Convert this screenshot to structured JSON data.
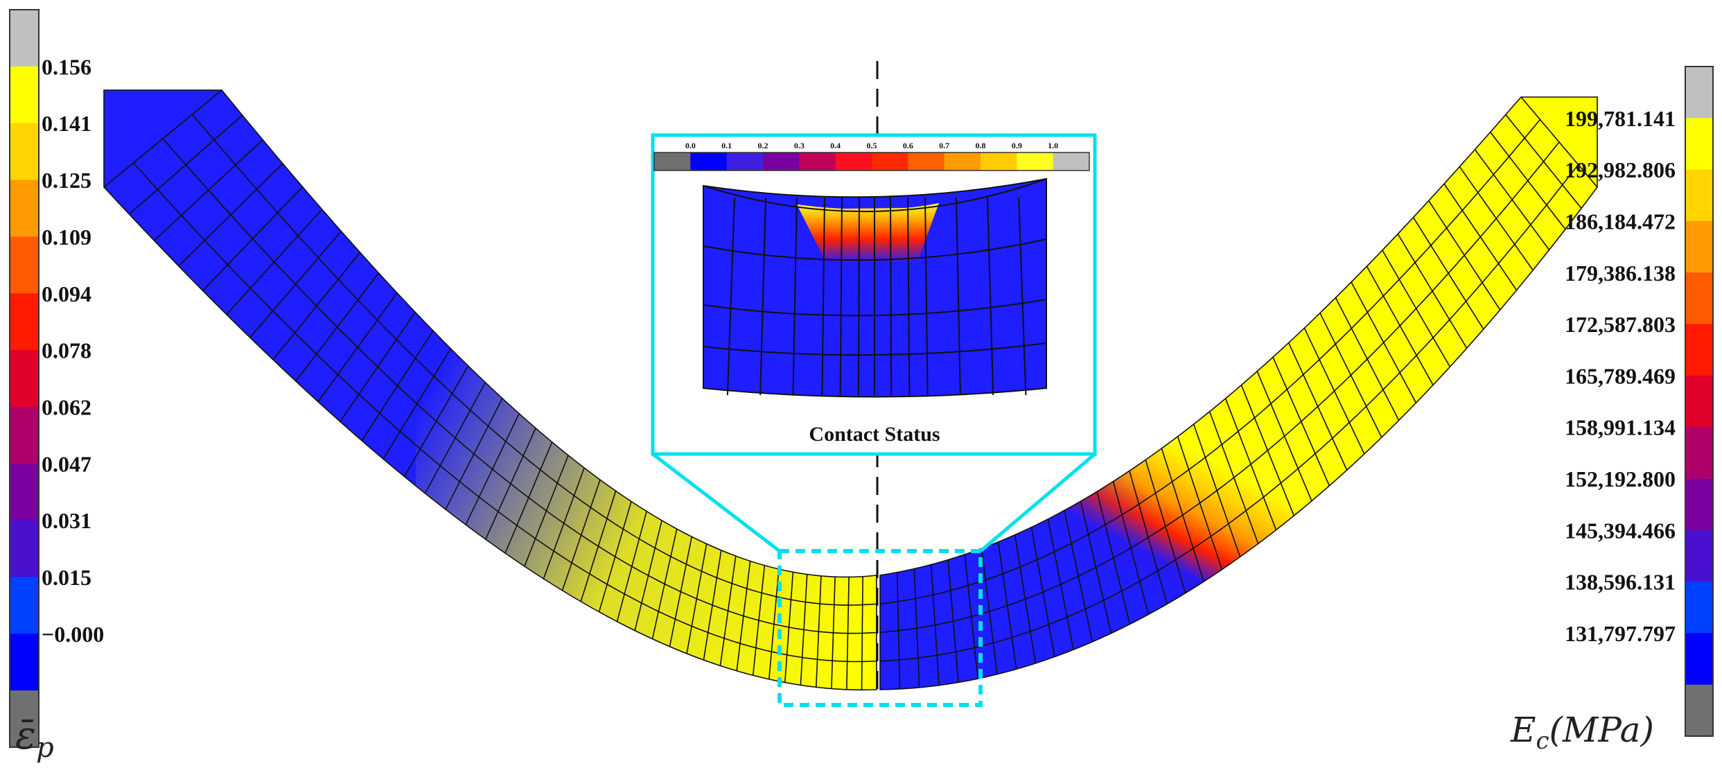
{
  "left_legend": {
    "labels": [
      "0.156",
      "0.141",
      "0.125",
      "0.109",
      "0.094",
      "0.078",
      "0.062",
      "0.047",
      "0.031",
      "0.015",
      "−0.000"
    ],
    "colors_top_to_bottom": [
      "#c0c0c0",
      "#ffff00",
      "#ffd400",
      "#ff9a00",
      "#ff5a00",
      "#ff1a00",
      "#e0002a",
      "#b0006a",
      "#7a00a0",
      "#4a10d0",
      "#0040ff",
      "#0000ff",
      "#707070"
    ],
    "symbol_main": "ε̄",
    "symbol_sub": "p"
  },
  "right_legend": {
    "labels": [
      "199,781.141",
      "192,982.806",
      "186,184.472",
      "179,386.138",
      "172,587.803",
      "165,789.469",
      "158,991.134",
      "152,192.800",
      "145,394.466",
      "138,596.131",
      "131,797.797"
    ],
    "colors_top_to_bottom": [
      "#c0c0c0",
      "#ffff00",
      "#ffd400",
      "#ff9a00",
      "#ff5a00",
      "#ff1a00",
      "#e0002a",
      "#b0006a",
      "#7a00a0",
      "#4a10d0",
      "#0040ff",
      "#0000ff",
      "#707070"
    ],
    "symbol_main": "E",
    "symbol_sub": "c",
    "symbol_unit": "(MPa)"
  },
  "inset": {
    "title": "Contact Status",
    "scale_labels": [
      "0.0",
      "0.1",
      "0.2",
      "0.3",
      "0.4",
      "0.5",
      "0.6",
      "0.7",
      "0.8",
      "0.9",
      "1.0"
    ],
    "scale_colors": [
      "#707070",
      "#0000ff",
      "#4020e0",
      "#7a00a0",
      "#c0005a",
      "#ff1020",
      "#ff2a00",
      "#ff6000",
      "#ff9a00",
      "#ffcc00",
      "#ffff20",
      "#c0c0c0"
    ]
  },
  "colors": {
    "frame": "#00e0ee",
    "blue": "#1e1eff",
    "background": "#ffffff"
  }
}
